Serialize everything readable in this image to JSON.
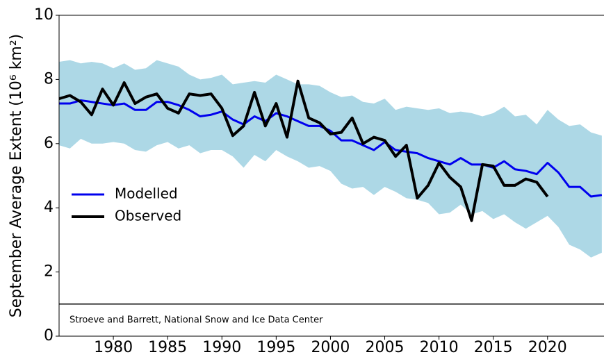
{
  "chart_data": {
    "type": "line",
    "ylabel": "September Average Extent (10⁶ km²)",
    "annotation": "Stroeve and Barrett, National Snow and Ice Data Center",
    "hline": 1,
    "x": [
      1975,
      1976,
      1977,
      1978,
      1979,
      1980,
      1981,
      1982,
      1983,
      1984,
      1985,
      1986,
      1987,
      1988,
      1989,
      1990,
      1991,
      1992,
      1993,
      1994,
      1995,
      1996,
      1997,
      1998,
      1999,
      2000,
      2001,
      2002,
      2003,
      2004,
      2005,
      2006,
      2007,
      2008,
      2009,
      2010,
      2011,
      2012,
      2013,
      2014,
      2015,
      2016,
      2017,
      2018,
      2019,
      2020,
      2021,
      2022,
      2023,
      2024,
      2025
    ],
    "band_color": "#add8e6",
    "band_upper": [
      8.55,
      8.6,
      8.5,
      8.55,
      8.5,
      8.35,
      8.5,
      8.3,
      8.35,
      8.6,
      8.5,
      8.4,
      8.15,
      8.0,
      8.05,
      8.15,
      7.85,
      7.9,
      7.95,
      7.9,
      8.15,
      8.0,
      7.85,
      7.85,
      7.8,
      7.6,
      7.45,
      7.5,
      7.3,
      7.25,
      7.4,
      7.05,
      7.15,
      7.1,
      7.05,
      7.1,
      6.95,
      7.0,
      6.95,
      6.85,
      6.95,
      7.15,
      6.85,
      6.9,
      6.6,
      7.05,
      6.75,
      6.55,
      6.6,
      6.35,
      6.25
    ],
    "band_lower": [
      5.95,
      5.85,
      6.15,
      6.0,
      6.0,
      6.05,
      6.0,
      5.8,
      5.75,
      5.95,
      6.05,
      5.85,
      5.95,
      5.7,
      5.8,
      5.8,
      5.6,
      5.25,
      5.65,
      5.45,
      5.8,
      5.6,
      5.45,
      5.25,
      5.3,
      5.15,
      4.75,
      4.6,
      4.65,
      4.4,
      4.65,
      4.5,
      4.3,
      4.25,
      4.15,
      3.8,
      3.85,
      4.1,
      3.8,
      3.9,
      3.65,
      3.8,
      3.55,
      3.35,
      3.55,
      3.75,
      3.4,
      2.85,
      2.7,
      2.45,
      2.6
    ],
    "series": [
      {
        "name": "Modelled",
        "color": "#0000ee",
        "width": 3,
        "x": [
          1975,
          1976,
          1977,
          1978,
          1979,
          1980,
          1981,
          1982,
          1983,
          1984,
          1985,
          1986,
          1987,
          1988,
          1989,
          1990,
          1991,
          1992,
          1993,
          1994,
          1995,
          1996,
          1997,
          1998,
          1999,
          2000,
          2001,
          2002,
          2003,
          2004,
          2005,
          2006,
          2007,
          2008,
          2009,
          2010,
          2011,
          2012,
          2013,
          2014,
          2015,
          2016,
          2017,
          2018,
          2019,
          2020,
          2021,
          2022,
          2023,
          2024,
          2025
        ],
        "values": [
          7.25,
          7.25,
          7.35,
          7.3,
          7.25,
          7.2,
          7.25,
          7.05,
          7.05,
          7.3,
          7.3,
          7.2,
          7.05,
          6.85,
          6.9,
          7.0,
          6.75,
          6.6,
          6.85,
          6.7,
          6.95,
          6.85,
          6.7,
          6.55,
          6.55,
          6.4,
          6.1,
          6.1,
          5.95,
          5.8,
          6.05,
          5.8,
          5.75,
          5.7,
          5.55,
          5.45,
          5.35,
          5.55,
          5.35,
          5.35,
          5.25,
          5.45,
          5.2,
          5.15,
          5.05,
          5.4,
          5.1,
          4.65,
          4.65,
          4.35,
          4.4
        ]
      },
      {
        "name": "Observed",
        "color": "#000000",
        "width": 4,
        "x": [
          1975,
          1976,
          1977,
          1978,
          1979,
          1980,
          1981,
          1982,
          1983,
          1984,
          1985,
          1986,
          1987,
          1988,
          1989,
          1990,
          1991,
          1992,
          1993,
          1994,
          1995,
          1996,
          1997,
          1998,
          1999,
          2000,
          2001,
          2002,
          2003,
          2004,
          2005,
          2006,
          2007,
          2008,
          2009,
          2010,
          2011,
          2012,
          2013,
          2014,
          2015,
          2016,
          2017,
          2018,
          2019,
          2020
        ],
        "values": [
          7.4,
          7.5,
          7.3,
          6.9,
          7.7,
          7.2,
          7.9,
          7.25,
          7.45,
          7.55,
          7.1,
          6.95,
          7.55,
          7.5,
          7.55,
          7.1,
          6.25,
          6.55,
          7.6,
          6.55,
          7.25,
          6.2,
          7.95,
          6.8,
          6.65,
          6.3,
          6.35,
          6.8,
          6.0,
          6.2,
          6.1,
          5.6,
          5.95,
          4.3,
          4.7,
          5.4,
          4.95,
          4.65,
          3.6,
          5.35,
          5.3,
          4.7,
          4.7,
          4.9,
          4.8,
          4.35
        ]
      }
    ],
    "xlim": [
      1975,
      2025.2
    ],
    "xticks": [
      1980,
      1985,
      1990,
      1995,
      2000,
      2005,
      2010,
      2015,
      2020
    ],
    "ylim": [
      0,
      10
    ],
    "yticks": [
      0,
      2,
      4,
      6,
      8,
      10
    ],
    "legend": "center-left"
  }
}
